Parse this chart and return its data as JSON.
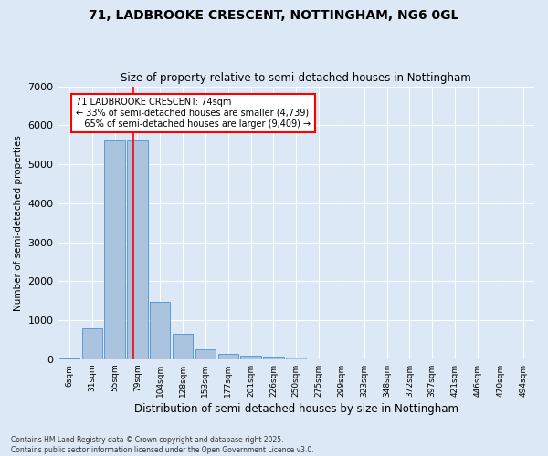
{
  "title1": "71, LADBROOKE CRESCENT, NOTTINGHAM, NG6 0GL",
  "title2": "Size of property relative to semi-detached houses in Nottingham",
  "xlabel": "Distribution of semi-detached houses by size in Nottingham",
  "ylabel": "Number of semi-detached properties",
  "categories": [
    "6sqm",
    "31sqm",
    "55sqm",
    "79sqm",
    "104sqm",
    "128sqm",
    "153sqm",
    "177sqm",
    "201sqm",
    "226sqm",
    "250sqm",
    "275sqm",
    "299sqm",
    "323sqm",
    "348sqm",
    "372sqm",
    "397sqm",
    "421sqm",
    "446sqm",
    "470sqm",
    "494sqm"
  ],
  "values": [
    30,
    800,
    5600,
    5600,
    1480,
    650,
    260,
    130,
    80,
    55,
    35,
    0,
    0,
    0,
    0,
    0,
    0,
    0,
    0,
    0,
    0
  ],
  "bar_color": "#aac4e0",
  "bar_edge_color": "#5b9bd5",
  "property_label": "71 LADBROOKE CRESCENT: 74sqm",
  "pct_smaller": "33% of semi-detached houses are smaller (4,739)",
  "pct_larger": "65% of semi-detached houses are larger (9,409)",
  "vline_color": "red",
  "vline_x_index": 2.84,
  "footnote": "Contains HM Land Registry data © Crown copyright and database right 2025.\nContains public sector information licensed under the Open Government Licence v3.0.",
  "ylim": [
    0,
    7000
  ],
  "background_color": "#dce8f5",
  "grid_color": "white"
}
